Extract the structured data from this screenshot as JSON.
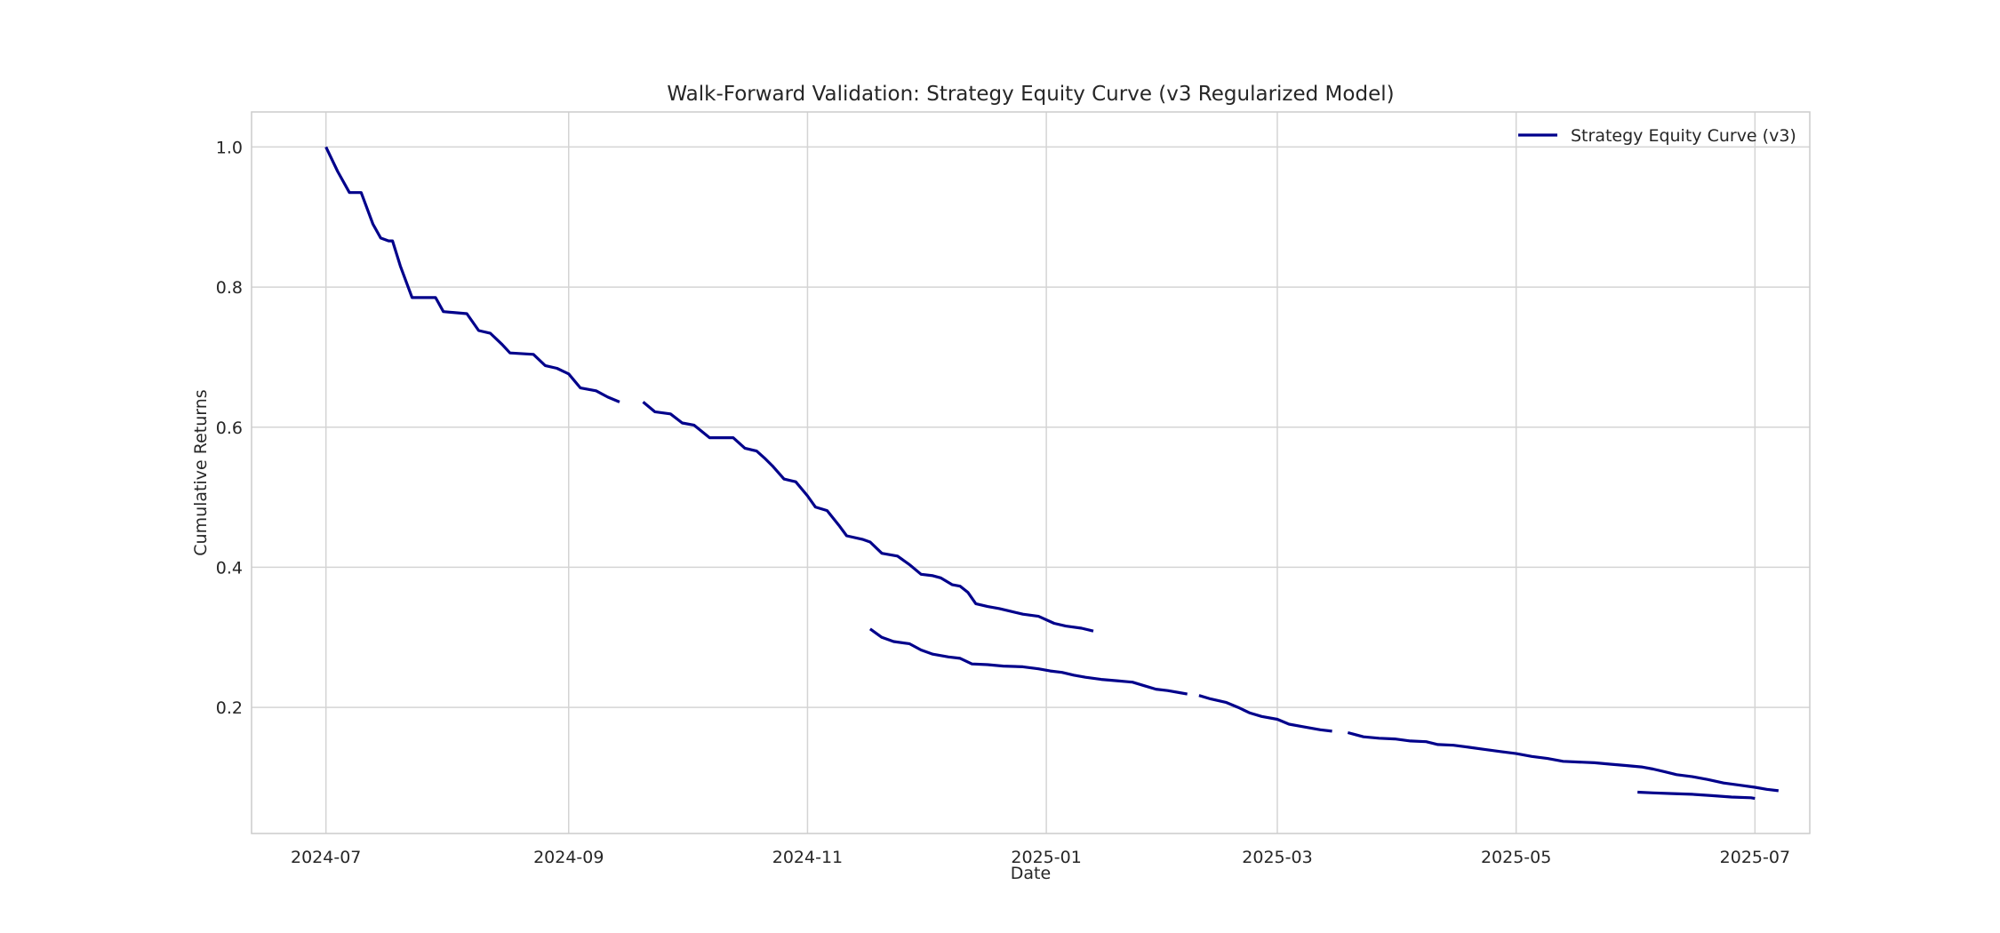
{
  "chart_data": {
    "type": "line",
    "title": "Walk-Forward Validation: Strategy Equity Curve (v3 Regularized Model)",
    "xlabel": "Date",
    "ylabel": "Cumulative Returns",
    "xlim": [
      "2024-06-12",
      "2025-07-15"
    ],
    "ylim": [
      0.02,
      1.05
    ],
    "x_ticks": [
      "2024-07",
      "2024-09",
      "2024-11",
      "2025-01",
      "2025-03",
      "2025-05",
      "2025-07"
    ],
    "y_ticks": [
      0.2,
      0.4,
      0.6,
      0.8,
      1.0
    ],
    "y_tick_labels": [
      "0.2",
      "0.4",
      "0.6",
      "0.8",
      "1.0"
    ],
    "grid": true,
    "legend_position": "top-right",
    "series": [
      {
        "name": "Strategy Equity Curve (v3)",
        "color": "#00008b",
        "segments": [
          [
            [
              "2024-07-01",
              1.0
            ],
            [
              "2024-07-04",
              0.965
            ],
            [
              "2024-07-07",
              0.935
            ],
            [
              "2024-07-10",
              0.935
            ],
            [
              "2024-07-13",
              0.89
            ],
            [
              "2024-07-15",
              0.87
            ],
            [
              "2024-07-17",
              0.866
            ],
            [
              "2024-07-18",
              0.866
            ],
            [
              "2024-07-20",
              0.83
            ],
            [
              "2024-07-23",
              0.785
            ],
            [
              "2024-07-29",
              0.785
            ],
            [
              "2024-07-31",
              0.765
            ],
            [
              "2024-08-06",
              0.762
            ],
            [
              "2024-08-09",
              0.738
            ],
            [
              "2024-08-12",
              0.734
            ],
            [
              "2024-08-15",
              0.718
            ],
            [
              "2024-08-17",
              0.706
            ],
            [
              "2024-08-23",
              0.704
            ],
            [
              "2024-08-26",
              0.688
            ],
            [
              "2024-08-29",
              0.684
            ],
            [
              "2024-09-01",
              0.676
            ],
            [
              "2024-09-04",
              0.656
            ],
            [
              "2024-09-08",
              0.652
            ],
            [
              "2024-09-11",
              0.643
            ],
            [
              "2024-09-14",
              0.636
            ]
          ],
          [
            [
              "2024-09-20",
              0.636
            ],
            [
              "2024-09-23",
              0.622
            ],
            [
              "2024-09-27",
              0.619
            ],
            [
              "2024-09-30",
              0.606
            ],
            [
              "2024-10-03",
              0.603
            ],
            [
              "2024-10-07",
              0.585
            ],
            [
              "2024-10-13",
              0.585
            ],
            [
              "2024-10-16",
              0.57
            ],
            [
              "2024-10-19",
              0.566
            ],
            [
              "2024-10-21",
              0.556
            ],
            [
              "2024-10-23",
              0.545
            ],
            [
              "2024-10-26",
              0.526
            ],
            [
              "2024-10-29",
              0.522
            ],
            [
              "2024-11-01",
              0.502
            ],
            [
              "2024-11-03",
              0.486
            ],
            [
              "2024-11-06",
              0.481
            ],
            [
              "2024-11-09",
              0.46
            ],
            [
              "2024-11-11",
              0.445
            ],
            [
              "2024-11-15",
              0.44
            ],
            [
              "2024-11-17",
              0.436
            ],
            [
              "2024-11-20",
              0.42
            ],
            [
              "2024-11-24",
              0.416
            ],
            [
              "2024-11-27",
              0.404
            ],
            [
              "2024-11-30",
              0.39
            ],
            [
              "2024-12-03",
              0.388
            ],
            [
              "2024-12-05",
              0.385
            ],
            [
              "2024-12-08",
              0.375
            ],
            [
              "2024-12-10",
              0.373
            ],
            [
              "2024-12-12",
              0.364
            ],
            [
              "2024-12-14",
              0.348
            ],
            [
              "2024-12-17",
              0.344
            ],
            [
              "2024-12-20",
              0.341
            ],
            [
              "2024-12-23",
              0.337
            ],
            [
              "2024-12-26",
              0.333
            ],
            [
              "2024-12-30",
              0.33
            ],
            [
              "2025-01-03",
              0.32
            ],
            [
              "2025-01-06",
              0.316
            ],
            [
              "2025-01-10",
              0.313
            ],
            [
              "2025-01-13",
              0.309
            ]
          ],
          [
            [
              "2024-11-17",
              0.312
            ],
            [
              "2024-11-20",
              0.3
            ],
            [
              "2024-11-23",
              0.294
            ],
            [
              "2024-11-27",
              0.291
            ],
            [
              "2024-11-30",
              0.282
            ],
            [
              "2024-12-03",
              0.276
            ],
            [
              "2024-12-07",
              0.272
            ],
            [
              "2024-12-10",
              0.27
            ],
            [
              "2024-12-13",
              0.262
            ],
            [
              "2024-12-17",
              0.261
            ],
            [
              "2024-12-21",
              0.259
            ],
            [
              "2024-12-26",
              0.258
            ],
            [
              "2024-12-30",
              0.255
            ],
            [
              "2025-01-02",
              0.252
            ],
            [
              "2025-01-05",
              0.25
            ],
            [
              "2025-01-08",
              0.246
            ],
            [
              "2025-01-11",
              0.243
            ],
            [
              "2025-01-15",
              0.24
            ],
            [
              "2025-01-19",
              0.238
            ],
            [
              "2025-01-23",
              0.236
            ],
            [
              "2025-01-26",
              0.231
            ],
            [
              "2025-01-29",
              0.226
            ],
            [
              "2025-02-01",
              0.224
            ],
            [
              "2025-02-04",
              0.221
            ],
            [
              "2025-02-06",
              0.219
            ]
          ],
          [
            [
              "2025-02-09",
              0.217
            ],
            [
              "2025-02-12",
              0.212
            ],
            [
              "2025-02-16",
              0.207
            ],
            [
              "2025-02-19",
              0.2
            ],
            [
              "2025-02-22",
              0.192
            ],
            [
              "2025-02-25",
              0.187
            ],
            [
              "2025-03-01",
              0.183
            ],
            [
              "2025-03-04",
              0.176
            ],
            [
              "2025-03-08",
              0.172
            ],
            [
              "2025-03-12",
              0.168
            ],
            [
              "2025-03-15",
              0.166
            ]
          ],
          [
            [
              "2025-03-19",
              0.164
            ],
            [
              "2025-03-23",
              0.158
            ],
            [
              "2025-03-27",
              0.156
            ],
            [
              "2025-03-31",
              0.155
            ],
            [
              "2025-04-04",
              0.152
            ],
            [
              "2025-04-08",
              0.151
            ],
            [
              "2025-04-11",
              0.147
            ],
            [
              "2025-04-15",
              0.146
            ],
            [
              "2025-04-19",
              0.143
            ],
            [
              "2025-04-23",
              0.14
            ],
            [
              "2025-04-27",
              0.137
            ],
            [
              "2025-05-01",
              0.134
            ],
            [
              "2025-05-05",
              0.13
            ],
            [
              "2025-05-09",
              0.127
            ],
            [
              "2025-05-13",
              0.123
            ],
            [
              "2025-05-17",
              0.122
            ],
            [
              "2025-05-21",
              0.121
            ],
            [
              "2025-05-25",
              0.119
            ],
            [
              "2025-05-29",
              0.117
            ],
            [
              "2025-06-02",
              0.115
            ],
            [
              "2025-06-05",
              0.112
            ],
            [
              "2025-06-08",
              0.108
            ],
            [
              "2025-06-11",
              0.104
            ],
            [
              "2025-06-15",
              0.101
            ],
            [
              "2025-06-19",
              0.097
            ],
            [
              "2025-06-23",
              0.092
            ],
            [
              "2025-06-27",
              0.089
            ],
            [
              "2025-07-01",
              0.086
            ],
            [
              "2025-07-04",
              0.083
            ],
            [
              "2025-07-07",
              0.081
            ]
          ],
          [
            [
              "2025-06-01",
              0.079
            ],
            [
              "2025-06-05",
              0.078
            ],
            [
              "2025-06-10",
              0.077
            ],
            [
              "2025-06-15",
              0.076
            ],
            [
              "2025-06-20",
              0.074
            ],
            [
              "2025-06-25",
              0.072
            ],
            [
              "2025-06-30",
              0.071
            ],
            [
              "2025-07-01",
              0.07
            ]
          ]
        ]
      }
    ]
  }
}
